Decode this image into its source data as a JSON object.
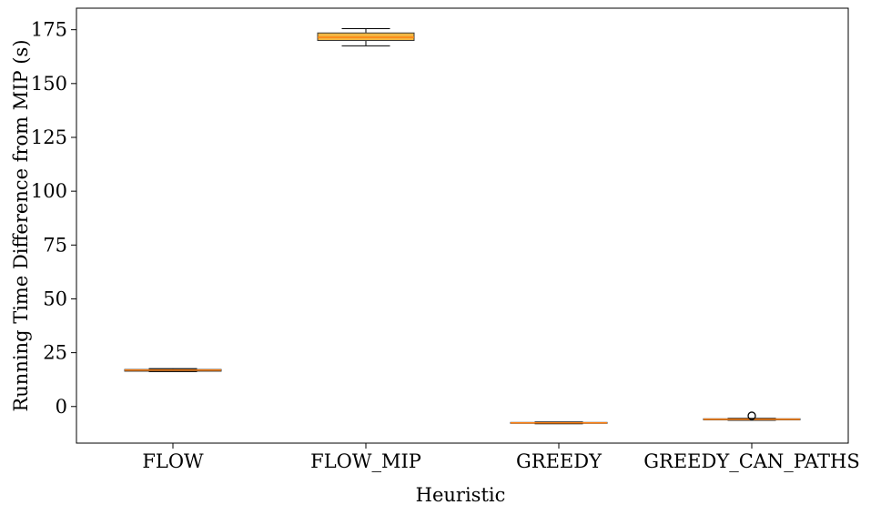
{
  "chart_data": {
    "type": "box",
    "xlabel": "Heuristic",
    "ylabel": "Running Time Difference from MIP (s)",
    "ylim": [
      -17,
      185
    ],
    "yticks": [
      0,
      25,
      50,
      75,
      100,
      125,
      150,
      175
    ],
    "grid": false,
    "categories": [
      "FLOW",
      "FLOW_MIP",
      "GREEDY",
      "GREEDY_CAN_PATHS"
    ],
    "boxes": [
      {
        "label": "FLOW",
        "whisker_low": 16.2,
        "q1": 16.4,
        "median": 16.9,
        "q3": 17.2,
        "whisker_high": 17.6,
        "outliers": []
      },
      {
        "label": "FLOW_MIP",
        "whisker_low": 167.5,
        "q1": 170.0,
        "median": 171.5,
        "q3": 173.5,
        "whisker_high": 175.5,
        "outliers": []
      },
      {
        "label": "GREEDY",
        "whisker_low": -8.0,
        "q1": -7.8,
        "median": -7.6,
        "q3": -7.4,
        "whisker_high": -7.2,
        "outliers": []
      },
      {
        "label": "GREEDY_CAN_PATHS",
        "whisker_low": -6.4,
        "q1": -6.2,
        "median": -5.9,
        "q3": -5.7,
        "whisker_high": -5.5,
        "outliers": [
          -4.3
        ]
      }
    ],
    "colors": {
      "box_fill": "#f2b642",
      "box_edge": "#3a3a3a",
      "median": "#ff7f0e",
      "axes": "#000000"
    }
  }
}
